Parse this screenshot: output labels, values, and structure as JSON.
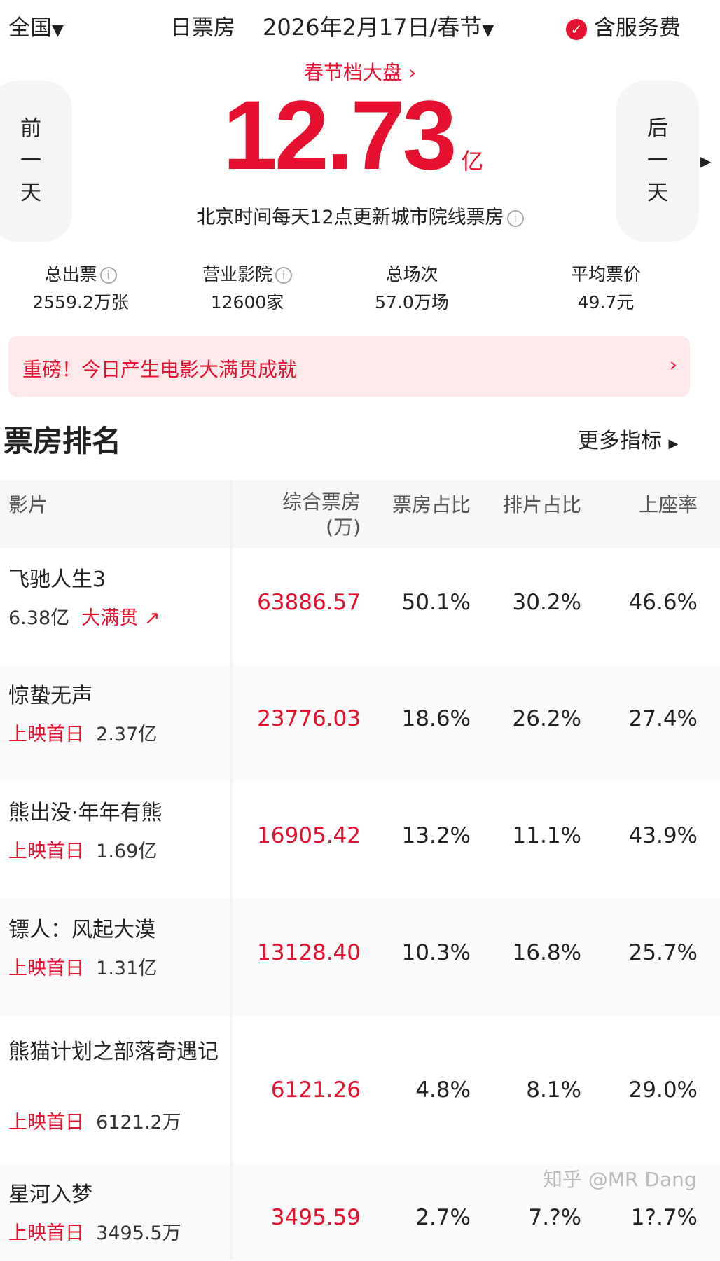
{
  "header": {
    "region": "全国",
    "title": "日票房",
    "date": "2026年2月17日/春节",
    "service_fee": "含服务费"
  },
  "summary": {
    "link": "春节档大盘",
    "total": "12.73",
    "unit": "亿",
    "note": "北京时间每天12点更新城市院线票房",
    "prev": [
      "前",
      "一",
      "天"
    ],
    "next": [
      "后",
      "一",
      "天"
    ]
  },
  "stats": [
    {
      "label": "总出票",
      "value": "2559.2万张",
      "info": true
    },
    {
      "label": "营业影院",
      "value": "12600家",
      "info": true
    },
    {
      "label": "总场次",
      "value": "57.0万场"
    },
    {
      "label": "平均票价",
      "value": "49.7元"
    }
  ],
  "banner": {
    "text": "重磅！今日产生电影大满贯成就"
  },
  "ranking": {
    "title": "票房排名",
    "more": "更多指标",
    "columns": [
      "影片",
      "综合票房",
      "(万)",
      "票房占比",
      "排片占比",
      "上座率"
    ],
    "rows": [
      {
        "name": "飞驰人生3",
        "sub_a": "6.38亿",
        "sub_b": "大满贯",
        "box": "63886.57",
        "share": "50.1%",
        "screen": "30.2%",
        "seat": "46.6%"
      },
      {
        "name": "惊蛰无声",
        "sub_a": "上映首日",
        "sub_b": "2.37亿",
        "box": "23776.03",
        "share": "18.6%",
        "screen": "26.2%",
        "seat": "27.4%"
      },
      {
        "name": "熊出没·年年有熊",
        "sub_a": "上映首日",
        "sub_b": "1.69亿",
        "box": "16905.42",
        "share": "13.2%",
        "screen": "11.1%",
        "seat": "43.9%"
      },
      {
        "name": "镖人：风起大漠",
        "sub_a": "上映首日",
        "sub_b": "1.31亿",
        "box": "13128.40",
        "share": "10.3%",
        "screen": "16.8%",
        "seat": "25.7%"
      },
      {
        "name": "熊猫计划之部落奇遇记",
        "sub_a": "上映首日",
        "sub_b": "6121.2万",
        "box": "6121.26",
        "share": "4.8%",
        "screen": "8.1%",
        "seat": "29.0%"
      },
      {
        "name": "星河入梦",
        "sub_a": "上映首日",
        "sub_b": "3495.5万",
        "box": "3495.59",
        "share": "2.7%",
        "screen": "7.?%",
        "seat": "1?.7%"
      }
    ]
  },
  "watermark": "知乎 @MR Dang",
  "colors": {
    "accent": "#e5112e",
    "banner_bg": "#fde9ea"
  }
}
